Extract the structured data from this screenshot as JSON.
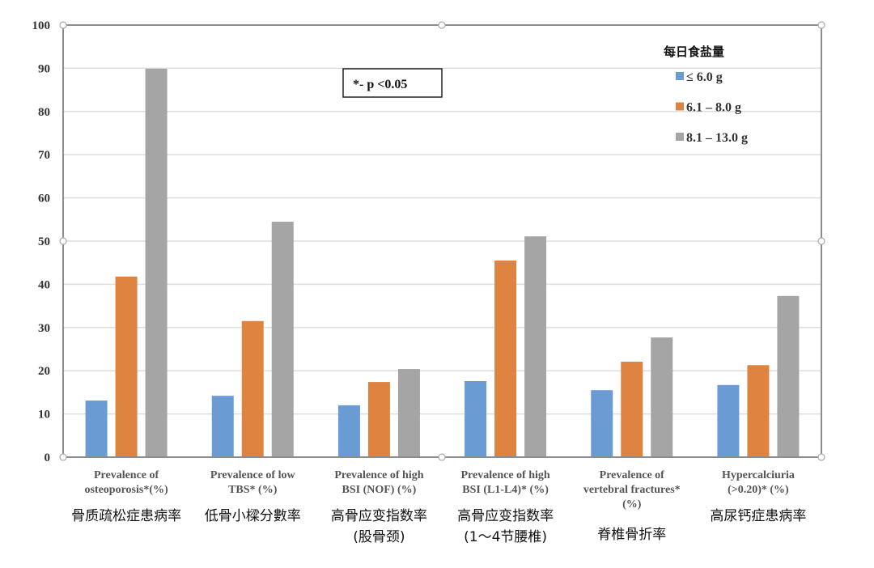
{
  "chart_data": {
    "type": "bar",
    "ylim": [
      0,
      100
    ],
    "yticks": [
      0,
      10,
      20,
      30,
      40,
      50,
      60,
      70,
      80,
      90,
      100
    ],
    "grid": true,
    "legend_position": "top-right",
    "legend_title": "每日食盐量",
    "annotation": "*- p <0.05",
    "categories": [
      {
        "en": [
          "Prevalence of",
          "osteoporosis*(%)"
        ],
        "zh": [
          "骨质疏松症患病率"
        ]
      },
      {
        "en": [
          "Prevalence of low",
          "TBS* (%)"
        ],
        "zh": [
          "低骨小樑分數率"
        ]
      },
      {
        "en": [
          "Prevalence of high",
          "BSI (NOF) (%)"
        ],
        "zh": [
          "高骨应变指数率",
          "(股骨颈)"
        ]
      },
      {
        "en": [
          "Prevalence of high",
          "BSI (L1-L4)* (%)"
        ],
        "zh": [
          "高骨应变指数率",
          "(1～4节腰椎)"
        ]
      },
      {
        "en": [
          "Prevalence of",
          "vertebral fractures*",
          "(%)"
        ],
        "zh": [
          "脊椎骨折率"
        ]
      },
      {
        "en": [
          "Hypercalciuria",
          "(>0.20)* (%)"
        ],
        "zh": [
          "高尿钙症患病率"
        ]
      }
    ],
    "series": [
      {
        "name": "≤ 6.0 g",
        "color": "#6a9bd2",
        "values": [
          13.1,
          14.2,
          12.0,
          17.6,
          15.5,
          16.7
        ]
      },
      {
        "name": "6.1 – 8.0 g",
        "color": "#df8440",
        "values": [
          41.8,
          31.5,
          17.4,
          45.5,
          22.1,
          21.3
        ]
      },
      {
        "name": "8.1 – 13.0 g",
        "color": "#a5a5a5",
        "values": [
          89.9,
          54.5,
          20.4,
          51.1,
          27.7,
          37.3
        ]
      }
    ]
  }
}
